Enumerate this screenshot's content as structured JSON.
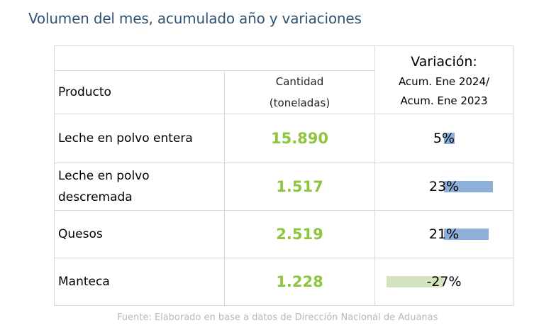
{
  "title": "Volumen del mes, acumulado año y variaciones",
  "table": {
    "header": {
      "product": "Producto",
      "quantity_line1": "Cantidad",
      "quantity_line2": "(toneladas)",
      "variation_title": "Variación:",
      "variation_line1": "Acum. Ene 2024/",
      "variation_line2": "Acum. Ene 2023"
    },
    "rows": [
      {
        "product_line1": "Leche en polvo entera",
        "product_line2": "",
        "quantity": "15.890",
        "variation": "5%",
        "variation_pct": 5
      },
      {
        "product_line1": "Leche en polvo",
        "product_line2": "descremada",
        "quantity": "1.517",
        "variation": "23%",
        "variation_pct": 23
      },
      {
        "product_line1": "Quesos",
        "product_line2": "",
        "quantity": "2.519",
        "variation": "21%",
        "variation_pct": 21
      },
      {
        "product_line1": "Manteca",
        "product_line2": "",
        "quantity": "1.228",
        "variation": "-27%",
        "variation_pct": -27
      }
    ]
  },
  "colors": {
    "title": "#2f5375",
    "quantity": "#8cc63f",
    "bar_positive": "#8db0da",
    "bar_negative": "#d5e4bf",
    "source": "#b8b8b8"
  },
  "source": "Fuente: Elaborado en base a datos de Dirección Nacional de Aduanas"
}
